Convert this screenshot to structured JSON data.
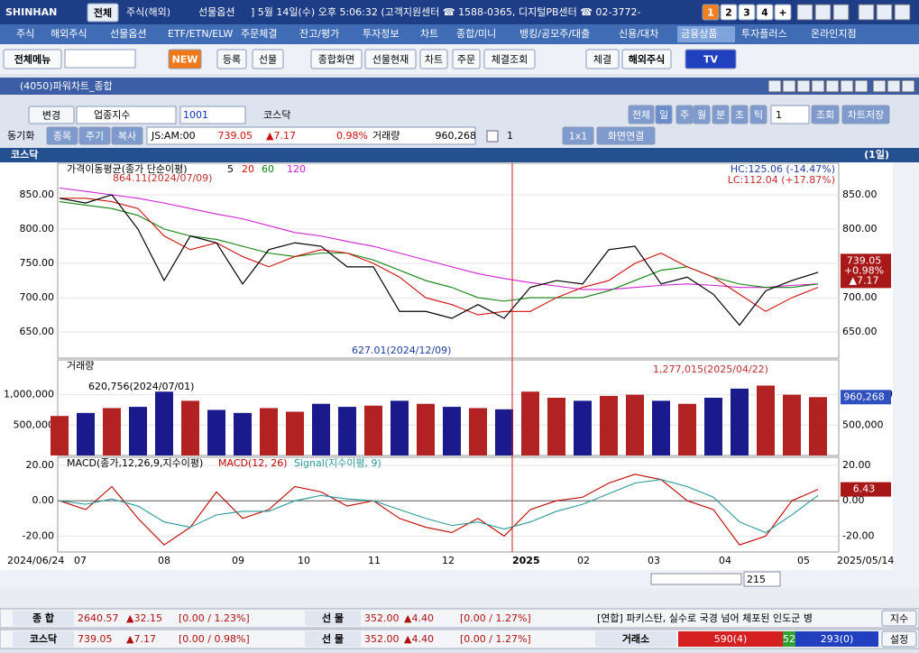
{
  "titlebar": {
    "logo": "SHINHAN",
    "tabs": [
      "전체",
      "주식(해외)",
      "선물옵션"
    ],
    "clock": "] 5월 14일(수) 오후 5:06:32 (고객지원센터 ☎ 1588-0365, 디지털PB센터 ☎ 02-3772-",
    "buttons": [
      "1",
      "2",
      "3",
      "4",
      "+"
    ]
  },
  "menu": [
    "주식",
    "해외주식",
    "선물옵션",
    "ETF/ETN/ELW",
    "주문체결",
    "잔고/평가",
    "투자정보",
    "차트",
    "종합/미니",
    "뱅킹/공모주/대출",
    "신용/대차",
    "금융상품",
    "투자플러스",
    "온라인지점"
  ],
  "toolbar": [
    "전체메뉴",
    "NEW",
    "등록",
    "선물",
    "종합화면",
    "선물현재",
    "차트",
    "주문",
    "체결조회",
    "체결",
    "해외주식",
    "TV"
  ],
  "window": {
    "title": "(4050)파워차트_종합"
  },
  "controls": {
    "change": "변경",
    "market": "업종지수",
    "code": "1001",
    "name": "코스닥",
    "periods": [
      "전체",
      "일",
      "주",
      "월",
      "분",
      "초",
      "틱"
    ],
    "count": "1",
    "query": "조회",
    "save": "차트저장"
  },
  "info": {
    "sync": "동기화",
    "buttons": [
      "종목",
      "주기",
      "복사"
    ],
    "time": "JS:AM:00",
    "price": "739.05",
    "change": "▲7.17",
    "rate": "0.98%",
    "vol_label": "거래량",
    "volume": "960,268",
    "count": "1",
    "layout": "1x1",
    "link": "화면연결"
  },
  "chart": {
    "type": "stock",
    "name": "코스닥",
    "period": "(1일)",
    "x_labels": [
      "2024/06/24",
      "07",
      "08",
      "09",
      "10",
      "11",
      "12",
      "2025",
      "02",
      "03",
      "04",
      "05",
      "2025/05/14"
    ],
    "price": {
      "legend": "가격이동평균(종가 단순이평)",
      "ylim": [
        612,
        896
      ],
      "yticks": [
        {
          "value": 850,
          "label": "850.00"
        },
        {
          "value": 800,
          "label": "800.00"
        },
        {
          "value": 750,
          "label": "750.00"
        },
        {
          "value": 700,
          "label": "700.00"
        },
        {
          "value": 650,
          "label": "650.00"
        }
      ],
      "series": [
        {
          "name": "5",
          "color": "#000000",
          "values": [
            845,
            838,
            850,
            800,
            725,
            790,
            780,
            720,
            770,
            780,
            775,
            745,
            745,
            680,
            680,
            670,
            690,
            670,
            715,
            725,
            720,
            770,
            775,
            720,
            730,
            705,
            660,
            710,
            725,
            737
          ]
        },
        {
          "name": "20",
          "color": "#d01010",
          "values": [
            845,
            845,
            840,
            830,
            790,
            770,
            780,
            760,
            745,
            760,
            770,
            765,
            750,
            730,
            700,
            690,
            675,
            680,
            680,
            700,
            715,
            725,
            750,
            765,
            745,
            730,
            705,
            680,
            700,
            715
          ]
        },
        {
          "name": "60",
          "color": "#108010",
          "values": [
            840,
            835,
            830,
            820,
            800,
            790,
            785,
            775,
            765,
            760,
            765,
            765,
            755,
            740,
            725,
            715,
            700,
            695,
            700,
            700,
            700,
            710,
            725,
            740,
            745,
            730,
            720,
            715,
            715,
            720
          ]
        },
        {
          "name": "120",
          "color": "#d020d0",
          "values": [
            860,
            855,
            850,
            845,
            838,
            830,
            822,
            815,
            805,
            795,
            790,
            782,
            775,
            765,
            755,
            745,
            735,
            728,
            722,
            717,
            712,
            712,
            715,
            718,
            720,
            718,
            715,
            715,
            718,
            720
          ]
        }
      ],
      "high_label": "864.11(2024/07/09)",
      "low_label": "627.01(2024/12/09)",
      "hc": "HC:125.06 (-14.47%)",
      "lc": "LC:112.04 (+17.87%)",
      "last": {
        "value": 739.05,
        "label": "739.05",
        "rate": "+0.98%",
        "change": "▲7.17"
      }
    },
    "volume": {
      "title": "거래량",
      "ylim": [
        0,
        1573000
      ],
      "yticks": [
        {
          "value": 1000000,
          "label": "1,000,000"
        },
        {
          "value": 500000,
          "label": "500,000"
        }
      ],
      "up_color": "#b22222",
      "down_color": "#1a1a8c",
      "values": [
        650000,
        700000,
        780000,
        800000,
        1050000,
        900000,
        750000,
        700000,
        780000,
        720000,
        850000,
        800000,
        820000,
        900000,
        850000,
        800000,
        780000,
        760000,
        1050000,
        950000,
        900000,
        980000,
        1000000,
        900000,
        850000,
        950000,
        1100000,
        1150000,
        1000000,
        960268
      ],
      "max_label": "1,277,015(2025/04/22)",
      "min_label": "620,756(2024/07/01)",
      "last": {
        "value": 960268,
        "label": "960,268"
      }
    },
    "macd": {
      "title": "MACD(종가,12,26,9,지수이평)",
      "ylim": [
        -29,
        24.6
      ],
      "yticks": [
        {
          "value": 20,
          "label": "20.00"
        },
        {
          "value": 0,
          "label": "0.00"
        },
        {
          "value": -20,
          "label": "-20.00"
        }
      ],
      "series": [
        {
          "name": "MACD(12, 26)",
          "color": "#c00000",
          "values": [
            0,
            -5,
            8,
            -10,
            -25,
            -15,
            5,
            -10,
            -5,
            8,
            5,
            -3,
            0,
            -10,
            -15,
            -18,
            -10,
            -20,
            -5,
            0,
            2,
            10,
            15,
            12,
            0,
            -5,
            -25,
            -20,
            0,
            6.43
          ]
        },
        {
          "name": "Signal(지수이평, 9)",
          "color": "#2a9a9a",
          "values": [
            0,
            -2,
            1,
            -3,
            -12,
            -15,
            -8,
            -6,
            -6,
            0,
            3,
            1,
            0,
            -5,
            -10,
            -14,
            -12,
            -16,
            -12,
            -6,
            -2,
            4,
            10,
            12,
            8,
            2,
            -12,
            -18,
            -8,
            3
          ]
        }
      ],
      "last": {
        "value": 6.43,
        "label": "6.43"
      }
    },
    "scroll": "215"
  },
  "status": {
    "row1": {
      "label": "종 합",
      "value": "2640.57",
      "change": "▲32.15",
      "rate": "[0.00 / 1.23%]",
      "fut_label": "선 물",
      "fut_value": "352.00",
      "fut_change": "▲4.40",
      "fut_rate": "[0.00 / 1.27%]",
      "news": "[연합] 파키스탄, 실수로 국경 넘어 체포된 인도군 병",
      "button": "지수"
    },
    "row2": {
      "label": "코스닥",
      "value": "739.05",
      "change": "▲7.17",
      "rate": "[0.00 / 0.98%]",
      "fut_label": "선 물",
      "fut_value": "352.00",
      "fut_change": "▲4.40",
      "fut_rate": "[0.00 / 1.27%]",
      "market": "거래소",
      "up": "590(4)",
      "flat": "52",
      "down": "293(0)",
      "button": "설정"
    }
  }
}
